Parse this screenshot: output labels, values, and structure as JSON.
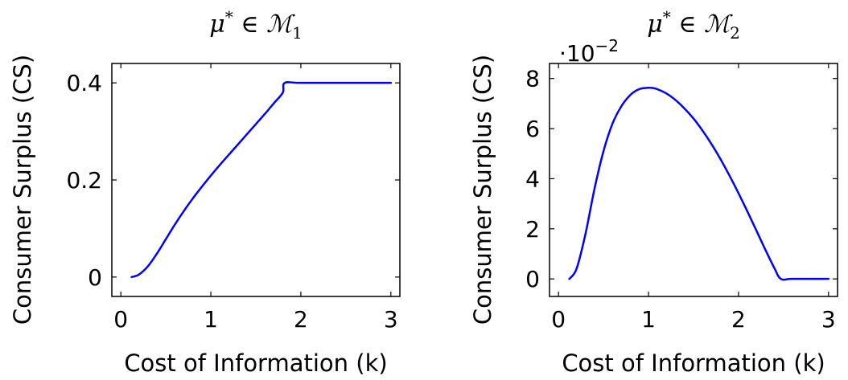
{
  "chart_data": [
    {
      "type": "line",
      "title": "μ* ∈ ℳ1",
      "title_parts": {
        "mu": "μ",
        "star": "*",
        "in": " ∈ ",
        "set": "ℳ",
        "sub": "1"
      },
      "xlabel": "Cost of Information (k)",
      "ylabel": "Consumer Surplus (CS)",
      "xlim": [
        -0.1,
        3.1
      ],
      "ylim": [
        -0.04,
        0.44
      ],
      "x_ticks": [
        0,
        1,
        2,
        3
      ],
      "x_tick_labels": [
        "0",
        "1",
        "2",
        "3"
      ],
      "y_ticks": [
        0,
        0.2,
        0.4
      ],
      "y_tick_labels": [
        "0",
        "0.2",
        "0.4"
      ],
      "y_scale_note": "",
      "grid": false,
      "series": [
        {
          "color": "#0000ff",
          "x": [
            0.12,
            0.2,
            0.3,
            0.4,
            0.5,
            0.6,
            0.7,
            0.8,
            0.9,
            1.0,
            1.1,
            1.2,
            1.3,
            1.4,
            1.5,
            1.6,
            1.7,
            1.8,
            1.82,
            2.0,
            2.5,
            3.0
          ],
          "y": [
            0.0,
            0.005,
            0.022,
            0.048,
            0.078,
            0.108,
            0.136,
            0.162,
            0.186,
            0.209,
            0.231,
            0.252,
            0.273,
            0.294,
            0.315,
            0.336,
            0.358,
            0.38,
            0.4,
            0.4,
            0.4,
            0.4
          ]
        }
      ]
    },
    {
      "type": "line",
      "title": "μ* ∈ ℳ2",
      "title_parts": {
        "mu": "μ",
        "star": "*",
        "in": " ∈ ",
        "set": "ℳ",
        "sub": "2"
      },
      "xlabel": "Cost of Information (k)",
      "ylabel": "Consumer Surplus (CS)",
      "xlim": [
        -0.1,
        3.1
      ],
      "ylim": [
        -0.7,
        8.6
      ],
      "x_ticks": [
        0,
        1,
        2,
        3
      ],
      "x_tick_labels": [
        "0",
        "1",
        "2",
        "3"
      ],
      "y_ticks": [
        0,
        2,
        4,
        6,
        8
      ],
      "y_tick_labels": [
        "0",
        "2",
        "4",
        "6",
        "8"
      ],
      "y_scale_note": "·10",
      "y_scale_exp": "−2",
      "grid": false,
      "series": [
        {
          "color": "#0000ff",
          "x": [
            0.12,
            0.2,
            0.3,
            0.4,
            0.5,
            0.6,
            0.7,
            0.8,
            0.9,
            1.0,
            1.05,
            1.1,
            1.2,
            1.3,
            1.4,
            1.5,
            1.6,
            1.7,
            1.8,
            1.9,
            2.0,
            2.1,
            2.2,
            2.3,
            2.4,
            2.47,
            2.6,
            3.0
          ],
          "y": [
            0.0,
            0.4,
            1.8,
            3.6,
            5.1,
            6.2,
            6.9,
            7.35,
            7.58,
            7.63,
            7.62,
            7.57,
            7.4,
            7.14,
            6.8,
            6.4,
            5.92,
            5.38,
            4.78,
            4.12,
            3.42,
            2.68,
            1.92,
            1.15,
            0.42,
            0.0,
            0.0,
            0.0
          ]
        }
      ]
    }
  ]
}
